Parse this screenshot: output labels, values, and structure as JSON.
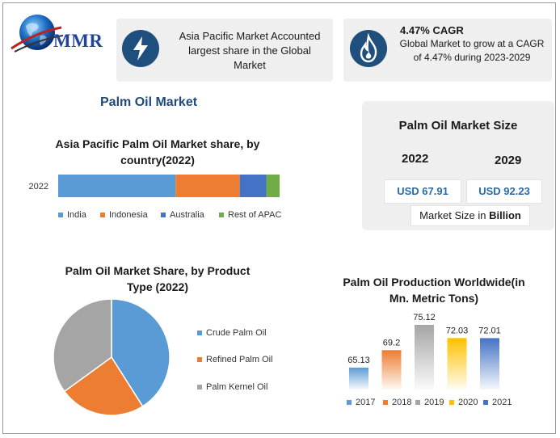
{
  "brand": {
    "name": "MMR"
  },
  "cards": {
    "apac": {
      "icon": "lightning-icon",
      "text": "Asia Pacific Market Accounted largest share in the Global Market"
    },
    "cagr": {
      "icon": "flame-icon",
      "headline": "4.47% CAGR",
      "text": "Global Market to grow at a CAGR of 4.47% during 2023-2029"
    }
  },
  "page_title": "Palm Oil Market",
  "colors": {
    "blue": "#5b9bd5",
    "orange": "#ed7d31",
    "dark_blue": "#4472c4",
    "green": "#70ad47",
    "gray": "#a5a5a5",
    "yellow": "#ffc000",
    "navy": "#1f4f7c"
  },
  "market_size": {
    "title": "Palm Oil Market Size",
    "year1": "2022",
    "year2": "2029",
    "value1": "USD 67.91",
    "value2": "USD 92.23",
    "note_prefix": "Market Size in ",
    "note_bold": "Billion"
  },
  "chart_data": [
    {
      "type": "bar",
      "orientation": "horizontal-stacked",
      "title": "Asia Pacific Palm Oil Market share, by country(2022)",
      "categories": [
        "2022"
      ],
      "series": [
        {
          "name": "India",
          "values": [
            53
          ]
        },
        {
          "name": "Indonesia",
          "values": [
            29
          ]
        },
        {
          "name": "Australia",
          "values": [
            12
          ]
        },
        {
          "name": "Rest of APAC",
          "values": [
            6
          ]
        }
      ],
      "legend": "bottom"
    },
    {
      "type": "pie",
      "title": "Palm Oil Market Share, by Product Type (2022)",
      "labels": [
        "Crude Palm Oil",
        "Refined Palm Oil",
        "Palm Kernel Oil"
      ],
      "values": [
        41,
        24,
        35
      ],
      "legend": "right"
    },
    {
      "type": "bar",
      "title": "Palm Oil Production Worldwide(in Mn. Metric Tons)",
      "categories": [
        "2017",
        "2018",
        "2019",
        "2020",
        "2021"
      ],
      "values": [
        65.13,
        69.2,
        75.12,
        72.03,
        72.01
      ],
      "data_labels": [
        "65.13",
        "69.2",
        "75.12",
        "72.03",
        "72.01"
      ],
      "ylim": [
        60,
        77
      ],
      "legend": "bottom"
    }
  ]
}
